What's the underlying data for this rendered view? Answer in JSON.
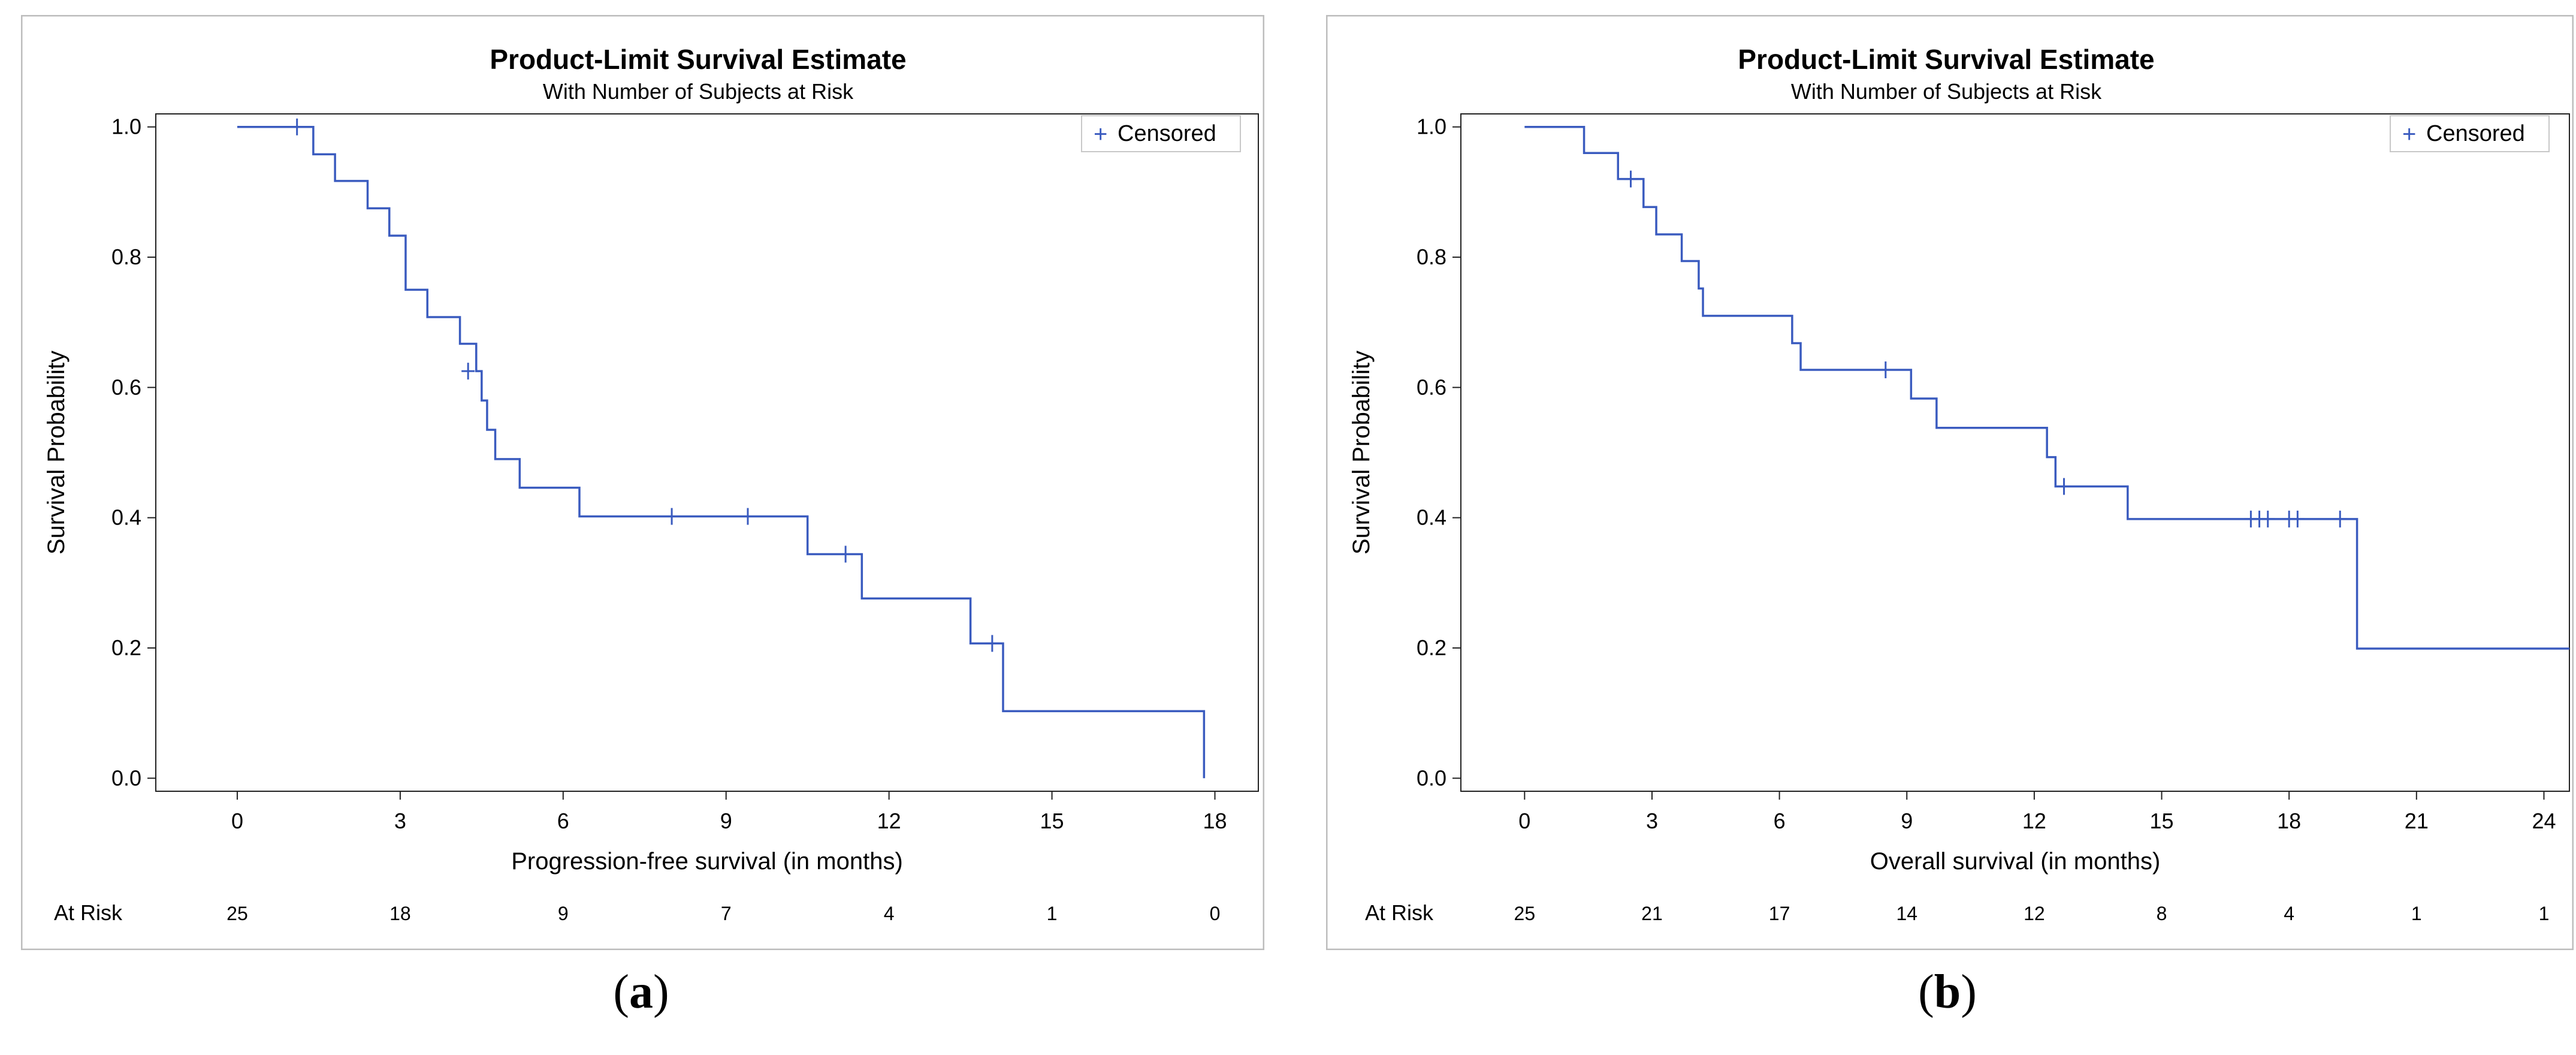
{
  "panels": [
    {
      "id": "a",
      "sub_label_open": "(",
      "sub_label_letter": "a",
      "sub_label_close": ")"
    },
    {
      "id": "b",
      "sub_label_open": "(",
      "sub_label_letter": "b",
      "sub_label_close": ")"
    }
  ],
  "colors": {
    "curve": "#3a5bbf",
    "axis": "#222222",
    "frame": "#bdbdbd",
    "legend_border": "#c8c8c8"
  },
  "chart_data": [
    {
      "type": "line",
      "step": "post",
      "title": "Product-Limit Survival Estimate",
      "subtitle": "With Number of Subjects at Risk",
      "xlabel": "Progression-free survival (in months)",
      "ylabel": "Survival Probability",
      "xlim": [
        -1.5,
        18.8
      ],
      "ylim": [
        -0.02,
        1.02
      ],
      "x_ticks": [
        0,
        3,
        6,
        9,
        12,
        15,
        18
      ],
      "y_ticks": [
        0.0,
        0.2,
        0.4,
        0.6,
        0.8,
        1.0
      ],
      "y_tick_labels": [
        "0.0",
        "0.2",
        "0.4",
        "0.6",
        "0.8",
        "1.0"
      ],
      "legend": {
        "label": "Censored",
        "position": "top-right"
      },
      "grid": false,
      "steps": [
        [
          0,
          1.0
        ],
        [
          1.4,
          0.958
        ],
        [
          1.8,
          0.917
        ],
        [
          2.4,
          0.875
        ],
        [
          2.8,
          0.833
        ],
        [
          3.1,
          0.75
        ],
        [
          3.5,
          0.708
        ],
        [
          4.1,
          0.667
        ],
        [
          4.4,
          0.625
        ],
        [
          4.5,
          0.58
        ],
        [
          4.6,
          0.535
        ],
        [
          4.75,
          0.49
        ],
        [
          5.2,
          0.446
        ],
        [
          6.3,
          0.402
        ],
        [
          10.5,
          0.344
        ],
        [
          11.5,
          0.276
        ],
        [
          13.5,
          0.207
        ],
        [
          14.1,
          0.103
        ],
        [
          17.8,
          0.0
        ]
      ],
      "censored": [
        [
          1.1,
          1.0
        ],
        [
          4.25,
          0.625
        ],
        [
          8.0,
          0.402
        ],
        [
          9.4,
          0.402
        ],
        [
          11.2,
          0.344
        ],
        [
          13.9,
          0.207
        ]
      ],
      "at_risk_label": "At Risk",
      "at_risk_times": [
        0,
        3,
        6,
        9,
        12,
        15,
        18
      ],
      "at_risk": [
        "25",
        "18",
        "9",
        "7",
        "4",
        "1",
        "0"
      ]
    },
    {
      "type": "line",
      "step": "post",
      "title": "Product-Limit Survival Estimate",
      "subtitle": "With Number of Subjects at Risk",
      "xlabel": "Overall survival (in months)",
      "ylabel": "Survival Probability",
      "xlim": [
        -1.5,
        24.6
      ],
      "ylim": [
        -0.02,
        1.02
      ],
      "x_ticks": [
        0,
        3,
        6,
        9,
        12,
        15,
        18,
        21,
        24
      ],
      "y_ticks": [
        0.0,
        0.2,
        0.4,
        0.6,
        0.8,
        1.0
      ],
      "y_tick_labels": [
        "0.0",
        "0.2",
        "0.4",
        "0.6",
        "0.8",
        "1.0"
      ],
      "legend": {
        "label": "Censored",
        "position": "top-right"
      },
      "grid": false,
      "steps": [
        [
          0,
          1.0
        ],
        [
          1.4,
          0.96
        ],
        [
          2.2,
          0.92
        ],
        [
          2.8,
          0.877
        ],
        [
          3.1,
          0.835
        ],
        [
          3.7,
          0.794
        ],
        [
          4.1,
          0.752
        ],
        [
          4.2,
          0.71
        ],
        [
          6.3,
          0.668
        ],
        [
          6.5,
          0.627
        ],
        [
          9.1,
          0.583
        ],
        [
          9.7,
          0.538
        ],
        [
          12.3,
          0.493
        ],
        [
          12.5,
          0.448
        ],
        [
          14.2,
          0.398
        ],
        [
          19.6,
          0.199
        ]
      ],
      "x_end": 24.6,
      "censored": [
        [
          2.5,
          0.92
        ],
        [
          8.5,
          0.627
        ],
        [
          12.7,
          0.448
        ],
        [
          17.1,
          0.398
        ],
        [
          17.3,
          0.398
        ],
        [
          17.5,
          0.398
        ],
        [
          18.0,
          0.398
        ],
        [
          18.2,
          0.398
        ],
        [
          19.2,
          0.398
        ]
      ],
      "at_risk_label": "At Risk",
      "at_risk_times": [
        0,
        3,
        6,
        9,
        12,
        15,
        18,
        21,
        24
      ],
      "at_risk": [
        "25",
        "21",
        "17",
        "14",
        "12",
        "8",
        "4",
        "1",
        "1"
      ]
    }
  ]
}
